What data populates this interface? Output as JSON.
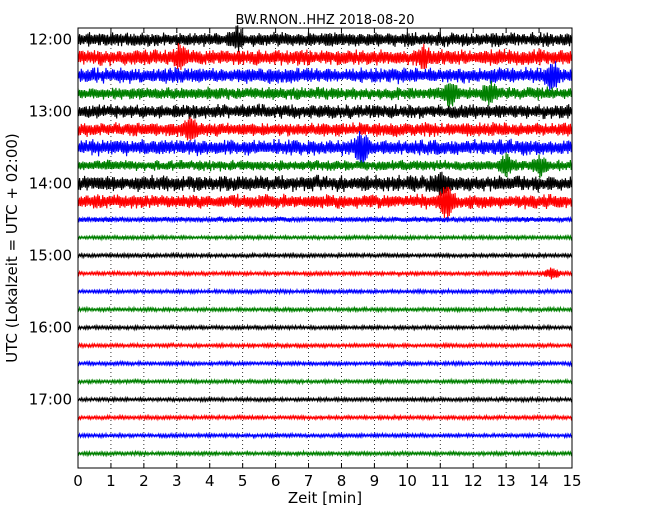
{
  "chart_data": {
    "type": "line",
    "title": "BW.RNON..HHZ 2018-08-20",
    "xlabel": "Zeit  [min]",
    "ylabel": "UTC (Lokalzeit = UTC + 02:00)",
    "xlim": [
      0,
      15
    ],
    "x_ticks": [
      "0",
      "1",
      "2",
      "3",
      "4",
      "5",
      "6",
      "7",
      "8",
      "9",
      "10",
      "11",
      "12",
      "13",
      "14",
      "15"
    ],
    "y_ticks": [
      "12:00",
      "13:00",
      "14:00",
      "15:00",
      "16:00",
      "17:00"
    ],
    "grid": "vertical dotted",
    "colors": [
      "#000000",
      "#ff0000",
      "#0000ff",
      "#008000"
    ],
    "traces": [
      {
        "start": "12:00",
        "amplitude": 8,
        "events": [
          {
            "x": 4.8,
            "amp": 12
          }
        ]
      },
      {
        "start": "12:15",
        "amplitude": 9,
        "events": [
          {
            "x": 3.1,
            "amp": 12
          },
          {
            "x": 10.5,
            "amp": 11
          }
        ]
      },
      {
        "start": "12:30",
        "amplitude": 9,
        "events": [
          {
            "x": 14.4,
            "amp": 14
          }
        ]
      },
      {
        "start": "12:45",
        "amplitude": 7,
        "events": [
          {
            "x": 11.3,
            "amp": 12
          },
          {
            "x": 12.5,
            "amp": 11
          }
        ]
      },
      {
        "start": "13:00",
        "amplitude": 8,
        "events": []
      },
      {
        "start": "13:15",
        "amplitude": 8,
        "events": [
          {
            "x": 3.4,
            "amp": 11
          }
        ]
      },
      {
        "start": "13:30",
        "amplitude": 9,
        "events": [
          {
            "x": 8.6,
            "amp": 16
          }
        ]
      },
      {
        "start": "13:45",
        "amplitude": 6,
        "events": [
          {
            "x": 13.0,
            "amp": 11
          },
          {
            "x": 14.0,
            "amp": 11
          }
        ]
      },
      {
        "start": "14:00",
        "amplitude": 9,
        "events": [
          {
            "x": 11.0,
            "amp": 10
          }
        ]
      },
      {
        "start": "14:15",
        "amplitude": 8,
        "events": [
          {
            "x": 11.2,
            "amp": 17
          }
        ]
      },
      {
        "start": "14:30",
        "amplitude": 3,
        "events": []
      },
      {
        "start": "14:45",
        "amplitude": 2,
        "events": []
      },
      {
        "start": "15:00",
        "amplitude": 2,
        "events": []
      },
      {
        "start": "15:15",
        "amplitude": 2,
        "events": [
          {
            "x": 14.4,
            "amp": 6
          }
        ]
      },
      {
        "start": "15:30",
        "amplitude": 2,
        "events": []
      },
      {
        "start": "15:45",
        "amplitude": 2,
        "events": []
      },
      {
        "start": "16:00",
        "amplitude": 2,
        "events": []
      },
      {
        "start": "16:15",
        "amplitude": 2,
        "events": []
      },
      {
        "start": "16:30",
        "amplitude": 2,
        "events": []
      },
      {
        "start": "16:45",
        "amplitude": 2,
        "events": []
      },
      {
        "start": "17:00",
        "amplitude": 2,
        "events": []
      },
      {
        "start": "17:15",
        "amplitude": 2,
        "events": []
      },
      {
        "start": "17:30",
        "amplitude": 2,
        "events": []
      },
      {
        "start": "17:45",
        "amplitude": 2,
        "events": []
      }
    ]
  }
}
